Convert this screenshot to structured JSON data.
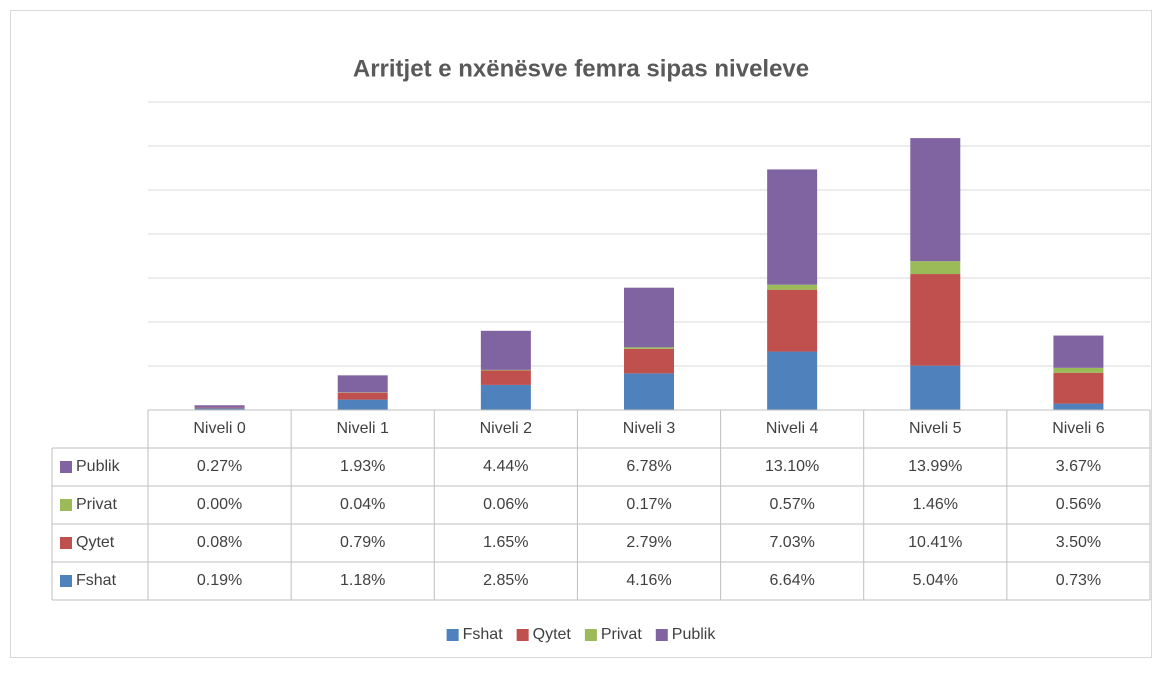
{
  "chart_data": {
    "type": "bar",
    "stacked": true,
    "title": "Arritjet e  nxënësve femra sipas niveleve",
    "categories": [
      "Niveli 0",
      "Niveli 1",
      "Niveli 2",
      "Niveli 3",
      "Niveli 4",
      "Niveli 5",
      "Niveli 6"
    ],
    "series": [
      {
        "name": "Fshat",
        "color": "#4f81bd",
        "values": [
          0.19,
          1.18,
          2.85,
          4.16,
          6.64,
          5.04,
          0.73
        ],
        "value_labels": [
          "0.19%",
          "1.18%",
          "2.85%",
          "4.16%",
          "6.64%",
          "5.04%",
          "0.73%"
        ]
      },
      {
        "name": "Qytet",
        "color": "#c0504d",
        "values": [
          0.08,
          0.79,
          1.65,
          2.79,
          7.03,
          10.41,
          3.5
        ],
        "value_labels": [
          "0.08%",
          "0.79%",
          "1.65%",
          "2.79%",
          "7.03%",
          "10.41%",
          "3.50%"
        ]
      },
      {
        "name": "Privat",
        "color": "#9bbb59",
        "values": [
          0.0,
          0.04,
          0.06,
          0.17,
          0.57,
          1.46,
          0.56
        ],
        "value_labels": [
          "0.00%",
          "0.04%",
          "0.06%",
          "0.17%",
          "0.57%",
          "1.46%",
          "0.56%"
        ]
      },
      {
        "name": "Publik",
        "color": "#8064a2",
        "values": [
          0.27,
          1.93,
          4.44,
          6.78,
          13.1,
          13.99,
          3.67
        ],
        "value_labels": [
          "0.27%",
          "1.93%",
          "4.44%",
          "6.78%",
          "13.10%",
          "13.99%",
          "3.67%"
        ]
      }
    ],
    "ylim": [
      0,
      35
    ],
    "yticks": [
      0,
      5,
      10,
      15,
      20,
      25,
      30,
      35
    ],
    "grid": true,
    "legend": "bottom"
  }
}
